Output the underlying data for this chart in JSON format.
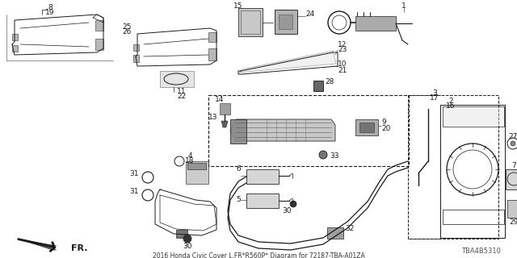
{
  "title": "2016 Honda Civic Cover L,FR*R560P* Diagram for 72187-TBA-A01ZA",
  "bg_color": "#ffffff",
  "catalog_code": "TBA4B5310",
  "figw": 6.4,
  "figh": 3.2,
  "dpi": 100
}
